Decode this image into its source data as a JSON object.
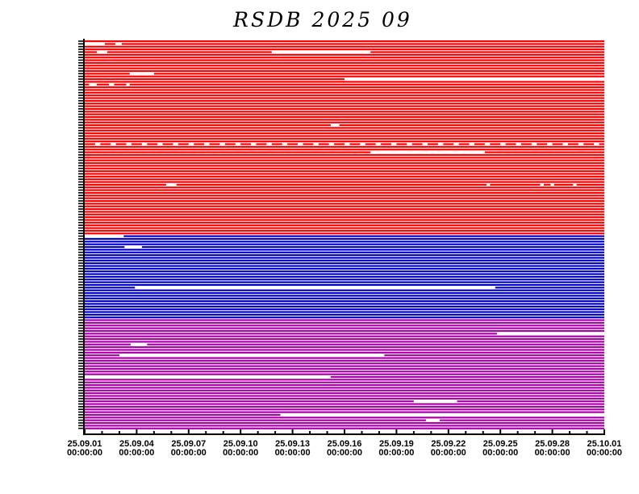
{
  "chart_data": {
    "type": "timeline",
    "title": "RSDB  2025  09",
    "xlim": [
      "2025-09-01",
      "2025-10-01"
    ],
    "x_tick_labels": [
      [
        "25.09.01",
        "00:00:00"
      ],
      [
        "25.09.04",
        "00:00:00"
      ],
      [
        "25.09.07",
        "00:00:00"
      ],
      [
        "25.09.10",
        "00:00:00"
      ],
      [
        "25.09.13",
        "00:00:00"
      ],
      [
        "25.09.16",
        "00:00:00"
      ],
      [
        "25.09.19",
        "00:00:00"
      ],
      [
        "25.09.22",
        "00:00:00"
      ],
      [
        "25.09.25",
        "00:00:00"
      ],
      [
        "25.09.28",
        "00:00:00"
      ],
      [
        "25.10.01",
        "00:00:00"
      ]
    ],
    "groups": [
      {
        "color": "#ff0000",
        "rows": 72
      },
      {
        "color": "#0000cc",
        "rows": 31
      },
      {
        "color": "#aa00aa",
        "rows": 41
      }
    ],
    "gaps_note_units": "days after 2025-09-01",
    "gaps": {
      "1": [
        [
          0,
          1.16
        ],
        [
          1.77,
          2.14
        ]
      ],
      "4": [
        [
          0.7,
          1.3
        ],
        [
          10.8,
          16.5
        ]
      ],
      "12": [
        [
          2.6,
          4.0
        ]
      ],
      "14": [
        [
          15.0,
          30
        ]
      ],
      "16": [
        [
          0.25,
          0.7
        ],
        [
          1.4,
          1.7
        ],
        [
          2.4,
          2.6
        ]
      ],
      "31": [
        [
          14.2,
          14.7
        ]
      ],
      "38": [
        [
          0.6,
          0.9
        ],
        [
          1.5,
          1.8
        ],
        [
          2.4,
          2.7
        ],
        [
          3.3,
          3.6
        ],
        [
          4.2,
          4.5
        ],
        [
          5.1,
          5.4
        ],
        [
          6.0,
          6.3
        ],
        [
          6.9,
          7.2
        ],
        [
          7.8,
          8.1
        ],
        [
          8.7,
          9.0
        ],
        [
          9.6,
          9.9
        ],
        [
          10.5,
          10.8
        ],
        [
          11.4,
          11.7
        ],
        [
          12.3,
          12.6
        ],
        [
          13.2,
          13.5
        ],
        [
          14.1,
          14.4
        ],
        [
          15.0,
          15.3
        ],
        [
          15.9,
          16.2
        ],
        [
          16.8,
          17.1
        ],
        [
          17.7,
          18.0
        ],
        [
          18.6,
          18.9
        ],
        [
          19.5,
          19.8
        ],
        [
          20.4,
          20.7
        ],
        [
          21.3,
          21.6
        ],
        [
          22.2,
          22.5
        ],
        [
          23.1,
          23.4
        ],
        [
          24.0,
          24.3
        ],
        [
          24.9,
          25.2
        ],
        [
          25.8,
          26.1
        ],
        [
          26.7,
          27.0
        ],
        [
          27.6,
          27.9
        ],
        [
          28.5,
          28.8
        ],
        [
          29.4,
          29.7
        ]
      ],
      "41": [
        [
          16.5,
          23.1
        ]
      ],
      "53": [
        [
          4.7,
          5.3
        ],
        [
          23.2,
          23.4
        ],
        [
          26.3,
          26.5
        ],
        [
          26.9,
          27.1
        ],
        [
          28.2,
          28.4
        ]
      ],
      "72": [
        [
          0,
          2.25
        ]
      ],
      "76": [
        [
          2.3,
          3.3
        ]
      ],
      "91": [
        [
          2.9,
          23.7
        ]
      ],
      "108": [
        [
          23.8,
          30
        ]
      ],
      "112": [
        [
          2.65,
          3.6
        ]
      ],
      "116": [
        [
          2.0,
          17.3
        ]
      ],
      "124": [
        [
          0,
          14.2
        ]
      ],
      "133": [
        [
          19.0,
          21.5
        ]
      ],
      "138": [
        [
          11.3,
          30
        ]
      ],
      "140": [
        [
          19.7,
          20.5
        ]
      ]
    }
  }
}
